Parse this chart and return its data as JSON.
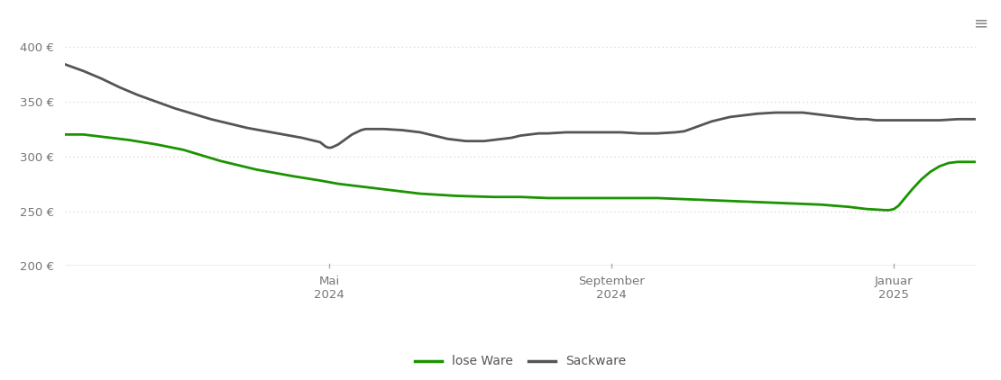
{
  "background_color": "#ffffff",
  "grid_color": "#cccccc",
  "ylim": [
    200,
    415
  ],
  "yticks": [
    200,
    250,
    300,
    350,
    400
  ],
  "x_tick_labels": [
    "Mai\n2024",
    "September\n2024",
    "Januar\n2025"
  ],
  "x_tick_positions": [
    0.29,
    0.6,
    0.91
  ],
  "line_lose_ware": {
    "color": "#1a9400",
    "label": "lose Ware",
    "points": [
      [
        0.0,
        320
      ],
      [
        0.02,
        320
      ],
      [
        0.04,
        318
      ],
      [
        0.07,
        315
      ],
      [
        0.1,
        311
      ],
      [
        0.13,
        306
      ],
      [
        0.17,
        296
      ],
      [
        0.21,
        288
      ],
      [
        0.25,
        282
      ],
      [
        0.28,
        278
      ],
      [
        0.3,
        275
      ],
      [
        0.33,
        272
      ],
      [
        0.36,
        269
      ],
      [
        0.39,
        266
      ],
      [
        0.43,
        264
      ],
      [
        0.47,
        263
      ],
      [
        0.5,
        263
      ],
      [
        0.53,
        262
      ],
      [
        0.56,
        262
      ],
      [
        0.59,
        262
      ],
      [
        0.62,
        262
      ],
      [
        0.65,
        262
      ],
      [
        0.68,
        261
      ],
      [
        0.71,
        260
      ],
      [
        0.74,
        259
      ],
      [
        0.77,
        258
      ],
      [
        0.8,
        257
      ],
      [
        0.83,
        256
      ],
      [
        0.86,
        254
      ],
      [
        0.88,
        252
      ],
      [
        0.9,
        251
      ],
      [
        0.905,
        251
      ],
      [
        0.91,
        252
      ],
      [
        0.915,
        255
      ],
      [
        0.92,
        260
      ],
      [
        0.93,
        270
      ],
      [
        0.94,
        279
      ],
      [
        0.95,
        286
      ],
      [
        0.96,
        291
      ],
      [
        0.97,
        294
      ],
      [
        0.98,
        295
      ],
      [
        1.0,
        295
      ]
    ]
  },
  "line_sackware": {
    "color": "#555555",
    "label": "Sackware",
    "points": [
      [
        0.0,
        384
      ],
      [
        0.02,
        378
      ],
      [
        0.04,
        371
      ],
      [
        0.06,
        363
      ],
      [
        0.08,
        356
      ],
      [
        0.1,
        350
      ],
      [
        0.12,
        344
      ],
      [
        0.14,
        339
      ],
      [
        0.16,
        334
      ],
      [
        0.18,
        330
      ],
      [
        0.2,
        326
      ],
      [
        0.22,
        323
      ],
      [
        0.24,
        320
      ],
      [
        0.26,
        317
      ],
      [
        0.27,
        315
      ],
      [
        0.28,
        313
      ],
      [
        0.283,
        311
      ],
      [
        0.286,
        309
      ],
      [
        0.289,
        308
      ],
      [
        0.292,
        308
      ],
      [
        0.295,
        309
      ],
      [
        0.3,
        311
      ],
      [
        0.305,
        314
      ],
      [
        0.31,
        317
      ],
      [
        0.315,
        320
      ],
      [
        0.32,
        322
      ],
      [
        0.325,
        324
      ],
      [
        0.33,
        325
      ],
      [
        0.35,
        325
      ],
      [
        0.37,
        324
      ],
      [
        0.39,
        322
      ],
      [
        0.4,
        320
      ],
      [
        0.41,
        318
      ],
      [
        0.42,
        316
      ],
      [
        0.43,
        315
      ],
      [
        0.44,
        314
      ],
      [
        0.45,
        314
      ],
      [
        0.46,
        314
      ],
      [
        0.47,
        315
      ],
      [
        0.48,
        316
      ],
      [
        0.49,
        317
      ],
      [
        0.5,
        319
      ],
      [
        0.51,
        320
      ],
      [
        0.52,
        321
      ],
      [
        0.53,
        321
      ],
      [
        0.55,
        322
      ],
      [
        0.57,
        322
      ],
      [
        0.59,
        322
      ],
      [
        0.61,
        322
      ],
      [
        0.63,
        321
      ],
      [
        0.65,
        321
      ],
      [
        0.67,
        322
      ],
      [
        0.68,
        323
      ],
      [
        0.69,
        326
      ],
      [
        0.7,
        329
      ],
      [
        0.71,
        332
      ],
      [
        0.72,
        334
      ],
      [
        0.73,
        336
      ],
      [
        0.74,
        337
      ],
      [
        0.76,
        339
      ],
      [
        0.78,
        340
      ],
      [
        0.79,
        340
      ],
      [
        0.8,
        340
      ],
      [
        0.81,
        340
      ],
      [
        0.82,
        339
      ],
      [
        0.83,
        338
      ],
      [
        0.84,
        337
      ],
      [
        0.85,
        336
      ],
      [
        0.86,
        335
      ],
      [
        0.87,
        334
      ],
      [
        0.88,
        334
      ],
      [
        0.89,
        333
      ],
      [
        0.9,
        333
      ],
      [
        0.92,
        333
      ],
      [
        0.94,
        333
      ],
      [
        0.96,
        333
      ],
      [
        0.98,
        334
      ],
      [
        1.0,
        334
      ]
    ]
  },
  "legend_entries": [
    "lose Ware",
    "Sackware"
  ],
  "legend_colors": [
    "#1a9400",
    "#555555"
  ],
  "bottom_line_color": "#aaaaaa",
  "tick_line_color": "#aaaaaa"
}
